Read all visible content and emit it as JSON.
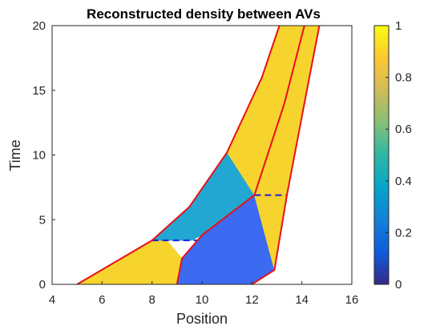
{
  "chart_data": {
    "type": "area",
    "title": "Reconstructed density between AVs",
    "xlabel": "Position",
    "ylabel": "Time",
    "xlim": [
      4,
      16
    ],
    "ylim": [
      0,
      20
    ],
    "xticks": [
      "4",
      "6",
      "8",
      "10",
      "12",
      "14",
      "16"
    ],
    "yticks": [
      "0",
      "5",
      "10",
      "15",
      "20"
    ],
    "grid": false,
    "colorbar": {
      "range": [
        0,
        1
      ],
      "ticks": [
        "0",
        "0.2",
        "0.4",
        "0.6",
        "0.8",
        "1"
      ]
    },
    "av_trajectories": [
      {
        "points": [
          [
            5.0,
            0
          ],
          [
            8.0,
            3.4
          ],
          [
            9.5,
            6.0
          ],
          [
            11.0,
            10.2
          ],
          [
            12.4,
            16.0
          ],
          [
            13.1,
            20.0
          ]
        ]
      },
      {
        "points": [
          [
            9.0,
            0
          ],
          [
            9.2,
            2.0
          ],
          [
            10.0,
            3.8
          ],
          [
            12.1,
            6.9
          ],
          [
            13.3,
            14.0
          ],
          [
            14.1,
            20.0
          ]
        ]
      },
      {
        "points": [
          [
            12.0,
            0
          ],
          [
            12.9,
            1.1
          ],
          [
            13.4,
            6.9
          ],
          [
            14.3,
            16.0
          ],
          [
            14.7,
            20.0
          ]
        ]
      }
    ],
    "regions": [
      {
        "density": 0.92,
        "color": "#f7d32d",
        "polygon": [
          [
            5.0,
            0
          ],
          [
            9.0,
            0
          ],
          [
            9.2,
            2.0
          ],
          [
            8.6,
            3.4
          ],
          [
            8.0,
            3.4
          ]
        ]
      },
      {
        "density": 0.45,
        "color": "#21a7d1",
        "polygon": [
          [
            8.0,
            3.4
          ],
          [
            9.5,
            6.0
          ],
          [
            11.0,
            10.2
          ],
          [
            12.1,
            6.9
          ],
          [
            10.0,
            3.8
          ],
          [
            9.6,
            3.4
          ]
        ]
      },
      {
        "density": 0.92,
        "color": "#f7d32d",
        "polygon": [
          [
            11.0,
            10.2
          ],
          [
            12.4,
            16.0
          ],
          [
            13.1,
            20.0
          ],
          [
            14.1,
            20.0
          ],
          [
            13.3,
            14.0
          ],
          [
            12.1,
            6.9
          ]
        ]
      },
      {
        "density": 0.28,
        "color": "#3c6af0",
        "polygon": [
          [
            9.0,
            0
          ],
          [
            12.0,
            0
          ],
          [
            12.9,
            1.1
          ],
          [
            12.1,
            6.9
          ],
          [
            10.0,
            3.8
          ],
          [
            9.2,
            2.0
          ]
        ]
      },
      {
        "density": 0.92,
        "color": "#f7d32d",
        "polygon": [
          [
            12.0,
            0
          ],
          [
            12.9,
            1.1
          ],
          [
            13.4,
            6.9
          ],
          [
            14.3,
            16.0
          ],
          [
            14.7,
            20.0
          ],
          [
            14.1,
            20.0
          ],
          [
            13.3,
            14.0
          ],
          [
            12.1,
            6.9
          ],
          [
            12.9,
            1.1
          ]
        ]
      }
    ],
    "dashed_lines": [
      {
        "x": [
          8.0,
          9.8
        ],
        "y": 3.4,
        "color": "#1f1fd6"
      },
      {
        "x": [
          12.1,
          13.4
        ],
        "y": 6.9,
        "color": "#1f1fd6"
      }
    ],
    "colors": {
      "trajectory": "#e8101a",
      "colormap": [
        "#352a87",
        "#0f5cdd",
        "#1481d6",
        "#06a4ca",
        "#2eb7a4",
        "#87bf77",
        "#d1bb59",
        "#fec832",
        "#f9fb0e"
      ]
    }
  }
}
